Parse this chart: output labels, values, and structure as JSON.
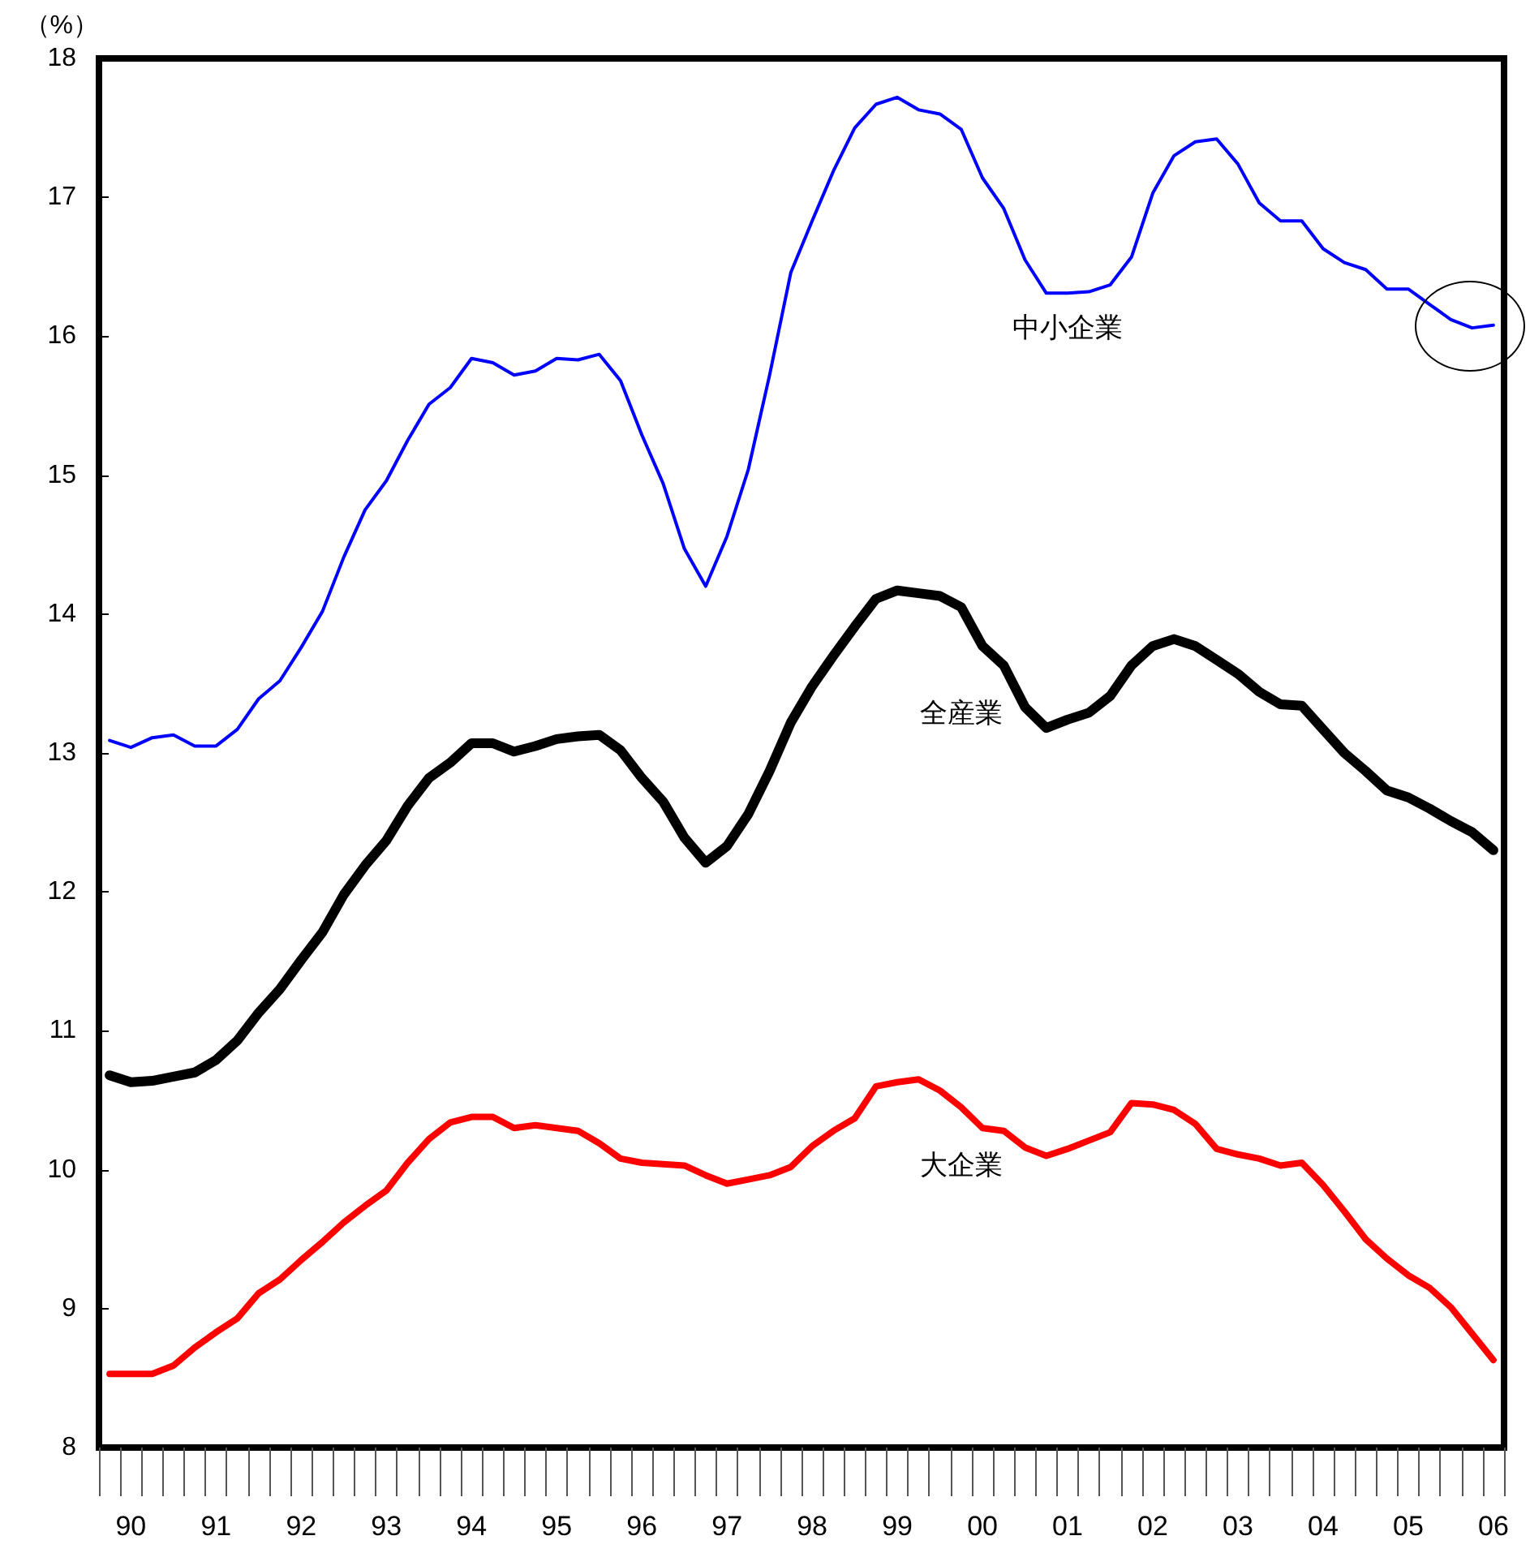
{
  "chart_data": {
    "type": "line",
    "ylabel": "（%）",
    "categories": [
      null,
      "90",
      null,
      null,
      null,
      "91",
      null,
      null,
      null,
      "92",
      null,
      null,
      null,
      "93",
      null,
      null,
      null,
      "94",
      null,
      null,
      null,
      "95",
      null,
      null,
      null,
      "96",
      null,
      null,
      null,
      "97",
      null,
      null,
      null,
      "98",
      null,
      null,
      null,
      "99",
      null,
      null,
      null,
      "00",
      null,
      null,
      null,
      "01",
      null,
      null,
      null,
      "02",
      null,
      null,
      null,
      "03",
      null,
      null,
      null,
      "04",
      null,
      null,
      null,
      "05",
      null,
      null,
      null,
      "06"
    ],
    "series": [
      {
        "name": "中小企業",
        "color": "#0000ff",
        "values": [
          13.09,
          13.04,
          13.11,
          13.13,
          13.05,
          13.05,
          13.17,
          13.39,
          13.52,
          13.76,
          14.02,
          14.41,
          14.75,
          14.96,
          15.25,
          15.51,
          15.63,
          15.84,
          15.81,
          15.72,
          15.75,
          15.84,
          15.83,
          15.87,
          15.68,
          15.29,
          14.94,
          14.47,
          14.2,
          14.56,
          15.04,
          15.72,
          16.46,
          16.83,
          17.19,
          17.5,
          17.67,
          17.72,
          17.63,
          17.6,
          17.49,
          17.14,
          16.92,
          16.55,
          16.31,
          16.31,
          16.32,
          16.37,
          16.57,
          17.03,
          17.3,
          17.4,
          17.42,
          17.24,
          16.96,
          16.83,
          16.83,
          16.63,
          16.53,
          16.48,
          16.34,
          16.34,
          16.23,
          16.12,
          16.06,
          16.08
        ]
      },
      {
        "name": "全産業",
        "color": "#000000",
        "values": [
          10.68,
          10.63,
          10.64,
          10.67,
          10.7,
          10.79,
          10.93,
          11.13,
          11.3,
          11.51,
          11.71,
          11.98,
          12.19,
          12.37,
          12.62,
          12.82,
          12.93,
          13.07,
          13.07,
          13.01,
          13.05,
          13.1,
          13.12,
          13.13,
          13.02,
          12.82,
          12.65,
          12.39,
          12.21,
          12.33,
          12.56,
          12.87,
          13.22,
          13.48,
          13.7,
          13.91,
          14.11,
          14.17,
          14.15,
          14.13,
          14.05,
          13.77,
          13.63,
          13.33,
          13.18,
          13.24,
          13.29,
          13.41,
          13.63,
          13.77,
          13.82,
          13.77,
          13.67,
          13.57,
          13.44,
          13.35,
          13.34,
          13.17,
          13.0,
          12.87,
          12.73,
          12.68,
          12.6,
          12.51,
          12.43,
          12.3
        ]
      },
      {
        "name": "大企業",
        "color": "#ff0000",
        "values": [
          8.53,
          8.53,
          8.53,
          8.59,
          8.72,
          8.83,
          8.93,
          9.11,
          9.21,
          9.35,
          9.48,
          9.62,
          9.74,
          9.85,
          10.05,
          10.22,
          10.34,
          10.38,
          10.38,
          10.3,
          10.32,
          10.3,
          10.28,
          10.19,
          10.08,
          10.05,
          10.04,
          10.03,
          9.96,
          9.9,
          9.93,
          9.96,
          10.02,
          10.17,
          10.28,
          10.37,
          10.6,
          10.63,
          10.65,
          10.57,
          10.45,
          10.3,
          10.28,
          10.16,
          10.1,
          10.15,
          10.21,
          10.27,
          10.48,
          10.47,
          10.43,
          10.33,
          10.15,
          10.11,
          10.08,
          10.03,
          10.05,
          9.89,
          9.7,
          9.5,
          9.36,
          9.24,
          9.15,
          9.01,
          8.82,
          8.63
        ]
      }
    ],
    "ylim": [
      8,
      18
    ],
    "yticks": [
      8,
      9,
      10,
      11,
      12,
      13,
      14,
      15,
      16,
      17,
      18
    ]
  }
}
